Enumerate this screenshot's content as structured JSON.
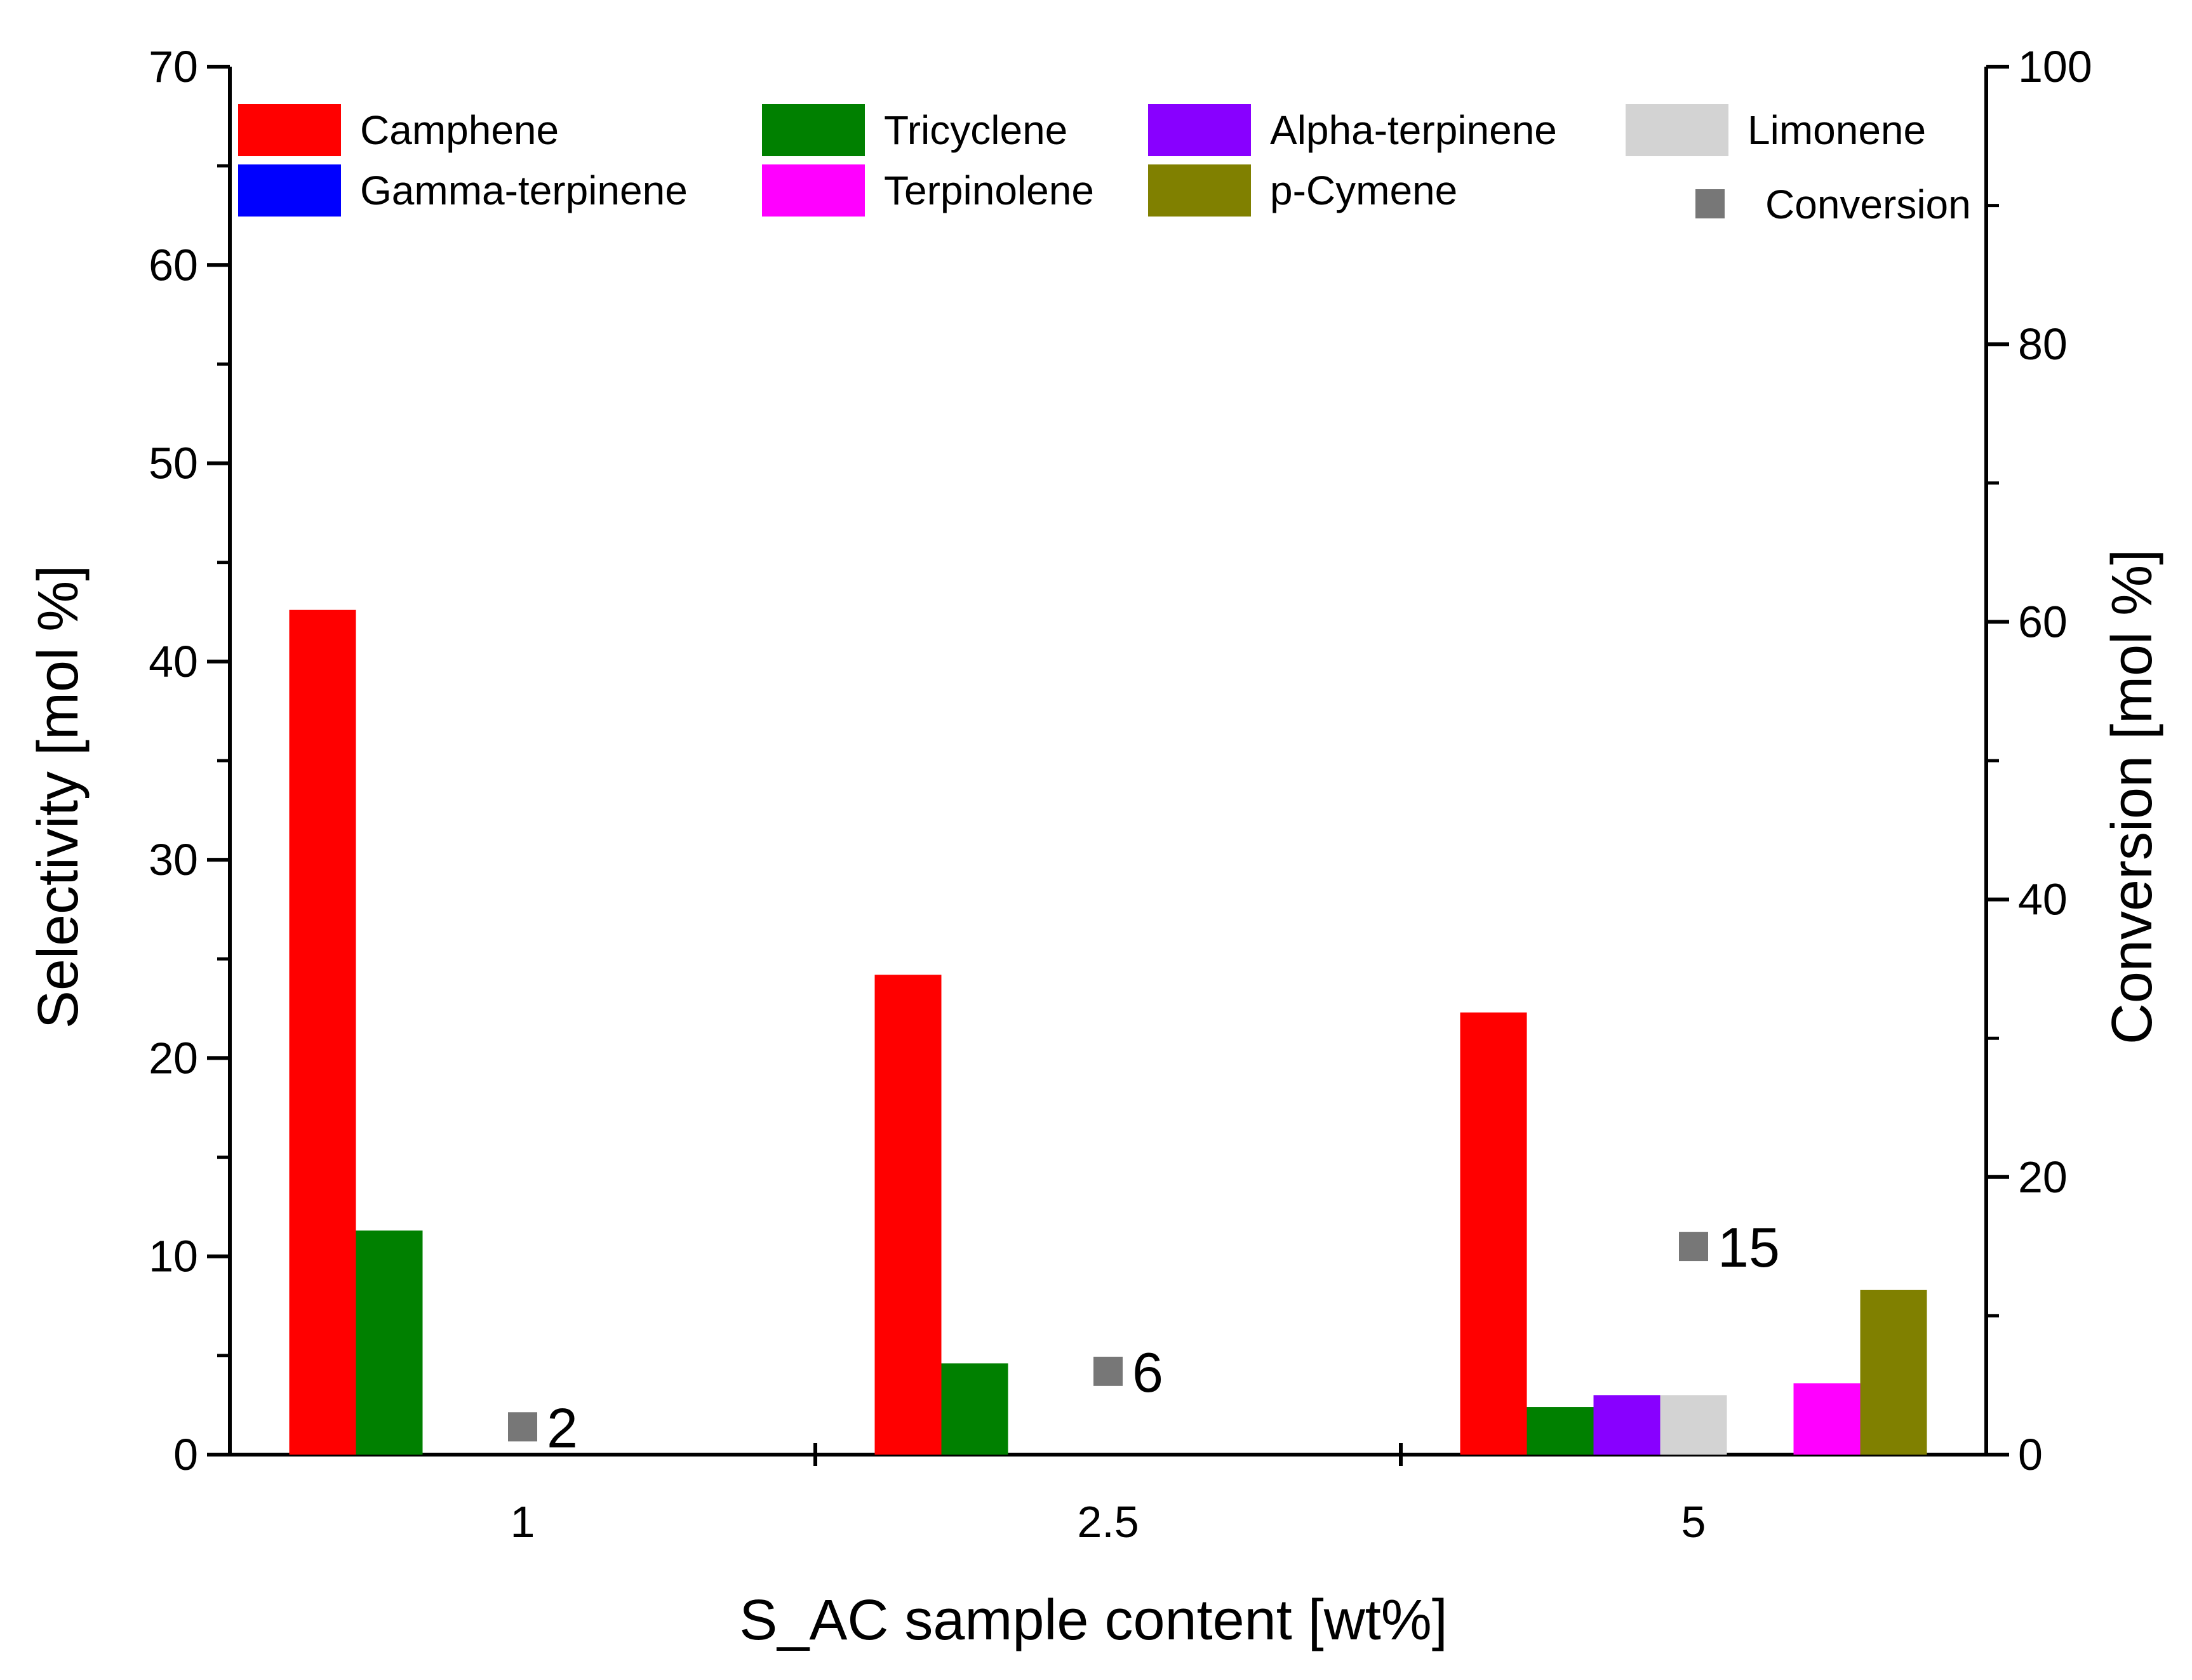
{
  "chart_data": {
    "type": "bar",
    "title": "",
    "xlabel": "S_AC sample content [wt%]",
    "ylabel": "Selectivity [mol %]",
    "y2label": "Conversion [mol %]",
    "ylim": [
      0,
      70
    ],
    "y2lim": [
      0,
      100
    ],
    "yticks": [
      0,
      10,
      20,
      30,
      40,
      50,
      60,
      70
    ],
    "y2ticks": [
      0,
      20,
      40,
      60,
      80,
      100
    ],
    "categories": [
      "1",
      "2.5",
      "5"
    ],
    "legend_position": "top",
    "series": [
      {
        "name": "Camphene",
        "color": "#ff0000",
        "values": [
          42.6,
          24.2,
          22.3
        ]
      },
      {
        "name": "Tricyclene",
        "color": "#008000",
        "values": [
          11.3,
          4.6,
          2.4
        ]
      },
      {
        "name": "Alpha-terpinene",
        "color": "#8800ff",
        "values": [
          0,
          0,
          3.0
        ]
      },
      {
        "name": "Limonene",
        "color": "#d3d3d3",
        "values": [
          0,
          0,
          3.0
        ]
      },
      {
        "name": "Gamma-terpinene",
        "color": "#0000ff",
        "values": [
          0,
          0,
          0
        ]
      },
      {
        "name": "Terpinolene",
        "color": "#ff00ff",
        "values": [
          0,
          0,
          3.6
        ]
      },
      {
        "name": "p-Cymene",
        "color": "#808000",
        "values": [
          0,
          0,
          8.3
        ]
      }
    ],
    "legend_order": [
      "Camphene",
      "Tricyclene",
      "Alpha-terpinene",
      "Limonene",
      "Gamma-terpinene",
      "Terpinolene",
      "p-Cymene",
      "Conversion"
    ],
    "conversion": {
      "name": "Conversion",
      "color": "#777777",
      "axis": "right",
      "values": [
        2,
        6,
        15
      ],
      "labels": [
        "2",
        "6",
        "15"
      ]
    }
  }
}
